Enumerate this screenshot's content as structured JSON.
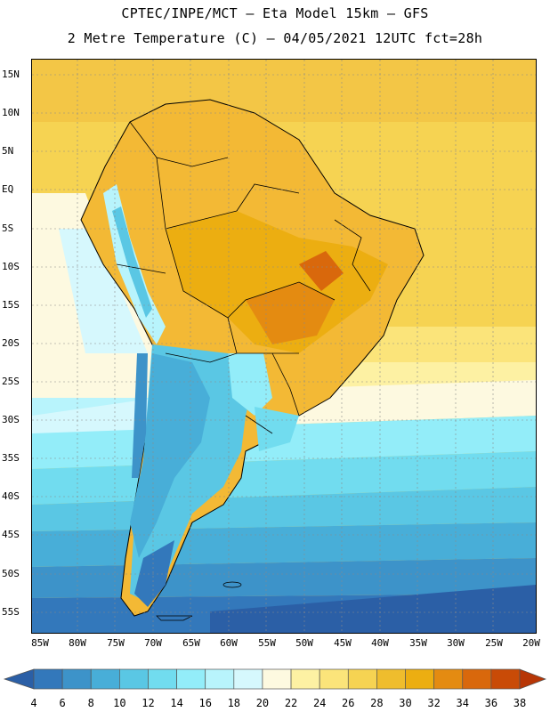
{
  "header": {
    "title_line1": "CPTEC/INPE/MCT –  Eta Model 15km – GFS",
    "title_line2": "2 Metre Temperature (C) – 04/05/2021 12UTC fct=28h"
  },
  "axes": {
    "lat_labels": [
      "15N",
      "10N",
      "5N",
      "EQ",
      "5S",
      "10S",
      "15S",
      "20S",
      "25S",
      "30S",
      "35S",
      "40S",
      "45S",
      "50S",
      "55S"
    ],
    "lon_labels": [
      "85W",
      "80W",
      "75W",
      "70W",
      "65W",
      "60W",
      "55W",
      "50W",
      "45W",
      "40W",
      "35W",
      "30W",
      "25W",
      "20W"
    ]
  },
  "legend": {
    "levels": [
      "4",
      "6",
      "8",
      "10",
      "12",
      "14",
      "16",
      "18",
      "20",
      "22",
      "24",
      "26",
      "28",
      "30",
      "32",
      "34",
      "36",
      "38"
    ],
    "colors": [
      "#2b5fa6",
      "#3378bb",
      "#3d93c9",
      "#48aed8",
      "#5ac7e4",
      "#71dcef",
      "#93edf9",
      "#b8f4fc",
      "#d6f8fd",
      "#fdf9e0",
      "#fdf1a3",
      "#fbe47a",
      "#f6d352",
      "#efbd2d",
      "#ecae11",
      "#e48b11",
      "#d9680c",
      "#c94b07",
      "#b73606"
    ]
  },
  "map": {
    "region": "South America",
    "variable": "2 Metre Temperature",
    "units": "C"
  }
}
